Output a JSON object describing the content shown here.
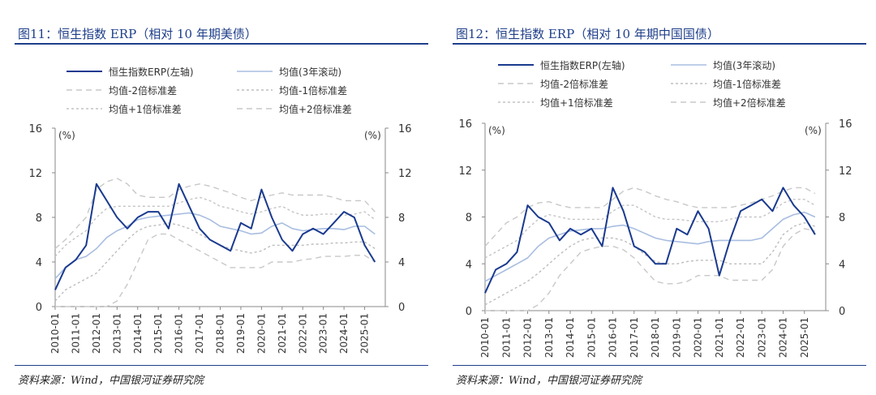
{
  "panels": [
    {
      "figure_title": "图11：恒生指数 ERP（相对 10 年期美债）",
      "source": "资料来源：Wind，中国银河证券研究院",
      "chart_data": {
        "type": "line",
        "title": "图11：恒生指数 ERP（相对 10 年期美债）",
        "unit_left": "(%)",
        "unit_right": "(%)",
        "ylim": [
          0,
          16
        ],
        "yticks": [
          0,
          4,
          8,
          12,
          16
        ],
        "xlim": [
          "2010-01",
          "2026-01"
        ],
        "x_tick_labels": [
          "2010-01",
          "2011-01",
          "2012-01",
          "2013-01",
          "2014-01",
          "2015-01",
          "2016-01",
          "2017-01",
          "2018-01",
          "2019-01",
          "2020-01",
          "2021-01",
          "2022-01",
          "2023-01",
          "2024-01",
          "2025-01"
        ],
        "legend_position": "top",
        "grid": false,
        "x": [
          "2010-01",
          "2010-07",
          "2011-01",
          "2011-07",
          "2012-01",
          "2012-07",
          "2013-01",
          "2013-07",
          "2014-01",
          "2014-07",
          "2015-01",
          "2015-07",
          "2016-01",
          "2016-07",
          "2017-01",
          "2017-07",
          "2018-01",
          "2018-07",
          "2019-01",
          "2019-07",
          "2020-01",
          "2020-07",
          "2021-01",
          "2021-07",
          "2022-01",
          "2022-07",
          "2023-01",
          "2023-07",
          "2024-01",
          "2024-07",
          "2025-01",
          "2025-07"
        ],
        "series": [
          {
            "name": "恒生指数ERP(左轴)",
            "color": "#1a3a8f",
            "style": "solid-thick",
            "values": [
              1.5,
              3.5,
              4.2,
              5.5,
              11.0,
              9.5,
              8.0,
              7.0,
              8.0,
              8.5,
              8.5,
              7.0,
              11.0,
              9.0,
              7.0,
              6.0,
              5.5,
              5.0,
              7.5,
              7.0,
              10.5,
              8.0,
              6.0,
              5.0,
              6.5,
              7.0,
              6.5,
              7.5,
              8.5,
              8.0,
              5.5,
              4.0
            ]
          },
          {
            "name": "均值(3年滚动)",
            "color": "#a8bde0",
            "style": "solid-thin",
            "values": [
              2.5,
              3.5,
              4.2,
              4.5,
              5.2,
              6.2,
              6.8,
              7.2,
              7.8,
              8.0,
              8.1,
              8.2,
              8.3,
              8.4,
              8.2,
              7.8,
              7.2,
              7.0,
              6.8,
              6.5,
              6.6,
              7.2,
              7.5,
              7.0,
              6.8,
              6.9,
              7.0,
              7.0,
              6.9,
              7.2,
              7.2,
              6.5
            ]
          },
          {
            "name": "均值-2倍标准差",
            "color": "#c8c8c8",
            "style": "dash-long",
            "values": [
              -1.0,
              0.0,
              0.0,
              0.0,
              0.0,
              0.0,
              0.5,
              2.0,
              4.0,
              6.0,
              6.5,
              6.5,
              6.0,
              5.5,
              5.0,
              4.5,
              4.0,
              3.5,
              3.5,
              3.5,
              3.5,
              4.0,
              4.0,
              4.0,
              4.2,
              4.3,
              4.5,
              4.5,
              4.5,
              4.6,
              4.6,
              4.0
            ]
          },
          {
            "name": "均值-1倍标准差",
            "color": "#bdbdbd",
            "style": "dash-short",
            "values": [
              0.5,
              1.5,
              2.0,
              2.5,
              3.0,
              4.0,
              5.0,
              6.0,
              6.8,
              7.2,
              7.3,
              7.5,
              7.3,
              7.0,
              6.5,
              6.0,
              5.5,
              5.2,
              5.0,
              4.8,
              5.0,
              5.5,
              5.5,
              5.5,
              5.5,
              5.6,
              5.6,
              5.7,
              5.7,
              5.8,
              5.8,
              5.2
            ]
          },
          {
            "name": "均值+1倍标准差",
            "color": "#c4c4c4",
            "style": "dash-short",
            "values": [
              4.5,
              5.5,
              6.2,
              6.8,
              8.0,
              8.8,
              9.0,
              9.0,
              9.0,
              9.0,
              9.0,
              9.0,
              9.3,
              9.6,
              9.8,
              9.5,
              9.0,
              8.8,
              8.5,
              8.3,
              8.5,
              8.8,
              9.0,
              8.5,
              8.2,
              8.2,
              8.3,
              8.3,
              8.2,
              8.3,
              8.5,
              7.8
            ]
          },
          {
            "name": "均值+2倍标准差",
            "color": "#c8c8c8",
            "style": "dash-long",
            "values": [
              5.2,
              6.0,
              7.0,
              8.0,
              10.5,
              11.2,
              11.5,
              11.0,
              10.0,
              9.8,
              9.8,
              9.8,
              10.5,
              10.8,
              11.0,
              10.8,
              10.5,
              10.2,
              9.8,
              9.5,
              9.8,
              10.0,
              10.2,
              10.0,
              10.0,
              10.0,
              10.0,
              9.8,
              9.5,
              9.5,
              9.5,
              8.5
            ]
          }
        ]
      }
    },
    {
      "figure_title": "图12：恒生指数 ERP（相对 10 年期中国国债）",
      "source": "资料来源：Wind，中国银河证券研究院",
      "chart_data": {
        "type": "line",
        "title": "图12：恒生指数 ERP（相对 10 年期中国国债）",
        "unit_left": "(%)",
        "unit_right": "(%)",
        "ylim": [
          0,
          16
        ],
        "yticks": [
          0,
          4,
          8,
          12,
          16
        ],
        "xlim": [
          "2010-01",
          "2026-01"
        ],
        "x_tick_labels": [
          "2010-01",
          "2011-01",
          "2012-01",
          "2013-01",
          "2014-01",
          "2015-01",
          "2016-01",
          "2017-01",
          "2018-01",
          "2019-01",
          "2020-01",
          "2021-01",
          "2022-01",
          "2023-01",
          "2024-01",
          "2025-01"
        ],
        "legend_position": "top",
        "grid": false,
        "x": [
          "2010-01",
          "2010-07",
          "2011-01",
          "2011-07",
          "2012-01",
          "2012-07",
          "2013-01",
          "2013-07",
          "2014-01",
          "2014-07",
          "2015-01",
          "2015-07",
          "2016-01",
          "2016-07",
          "2017-01",
          "2017-07",
          "2018-01",
          "2018-07",
          "2019-01",
          "2019-07",
          "2020-01",
          "2020-07",
          "2021-01",
          "2021-07",
          "2022-01",
          "2022-07",
          "2023-01",
          "2023-07",
          "2024-01",
          "2024-07",
          "2025-01",
          "2025-07"
        ],
        "series": [
          {
            "name": "恒生指数ERP(左轴)",
            "color": "#1a3a8f",
            "style": "solid-thick",
            "values": [
              1.5,
              3.5,
              4.0,
              5.0,
              9.0,
              8.0,
              7.5,
              6.0,
              7.0,
              6.5,
              7.0,
              5.5,
              10.5,
              8.5,
              5.5,
              5.0,
              4.0,
              4.0,
              7.0,
              6.5,
              8.5,
              7.0,
              3.0,
              6.0,
              8.5,
              9.0,
              9.5,
              8.5,
              10.5,
              9.0,
              8.0,
              6.5
            ]
          },
          {
            "name": "均值(3年滚动)",
            "color": "#a8bde0",
            "style": "solid-thin",
            "values": [
              2.5,
              3.0,
              3.5,
              4.0,
              4.5,
              5.5,
              6.2,
              6.5,
              6.8,
              6.9,
              7.0,
              7.0,
              7.2,
              7.3,
              7.0,
              6.6,
              6.2,
              6.0,
              5.9,
              5.8,
              5.7,
              5.9,
              6.0,
              6.0,
              6.0,
              6.0,
              6.2,
              7.0,
              7.8,
              8.2,
              8.4,
              8.0
            ]
          },
          {
            "name": "均值-2倍标准差",
            "color": "#c8c8c8",
            "style": "dash-long",
            "values": [
              0.0,
              0.0,
              0.0,
              0.0,
              0.0,
              0.5,
              1.5,
              3.0,
              4.0,
              5.0,
              5.3,
              5.5,
              5.5,
              5.2,
              4.5,
              3.5,
              2.5,
              2.3,
              2.3,
              2.5,
              3.0,
              3.0,
              3.0,
              2.6,
              2.6,
              2.6,
              2.6,
              3.5,
              5.5,
              6.5,
              7.0,
              6.8
            ]
          },
          {
            "name": "均值-1倍标准差",
            "color": "#bdbdbd",
            "style": "dash-short",
            "values": [
              0.5,
              1.0,
              1.5,
              2.0,
              2.5,
              3.2,
              4.0,
              4.8,
              5.5,
              6.0,
              6.2,
              6.2,
              6.2,
              6.0,
              5.5,
              4.8,
              4.2,
              4.0,
              4.0,
              4.2,
              4.3,
              4.3,
              4.3,
              4.0,
              4.0,
              4.0,
              4.0,
              5.0,
              6.5,
              7.2,
              7.5,
              7.2
            ]
          },
          {
            "name": "均值+1倍标准差",
            "color": "#c4c4c4",
            "style": "dash-short",
            "values": [
              4.5,
              5.0,
              5.5,
              6.0,
              7.0,
              7.8,
              8.2,
              8.0,
              7.8,
              7.8,
              7.8,
              7.8,
              8.5,
              9.0,
              9.0,
              8.5,
              8.0,
              7.8,
              7.8,
              7.7,
              7.6,
              7.6,
              7.6,
              7.8,
              8.0,
              8.0,
              8.0,
              8.5,
              9.2,
              9.5,
              9.5,
              9.0
            ]
          },
          {
            "name": "均值+2倍标准差",
            "color": "#c8c8c8",
            "style": "dash-long",
            "values": [
              5.5,
              6.5,
              7.5,
              8.0,
              8.8,
              9.2,
              9.3,
              9.0,
              8.8,
              8.8,
              8.8,
              8.8,
              9.5,
              10.2,
              10.5,
              10.2,
              9.8,
              9.5,
              9.3,
              9.0,
              8.8,
              8.8,
              8.8,
              8.8,
              9.0,
              9.2,
              9.5,
              9.8,
              10.2,
              10.5,
              10.5,
              10.0
            ]
          }
        ]
      }
    }
  ]
}
